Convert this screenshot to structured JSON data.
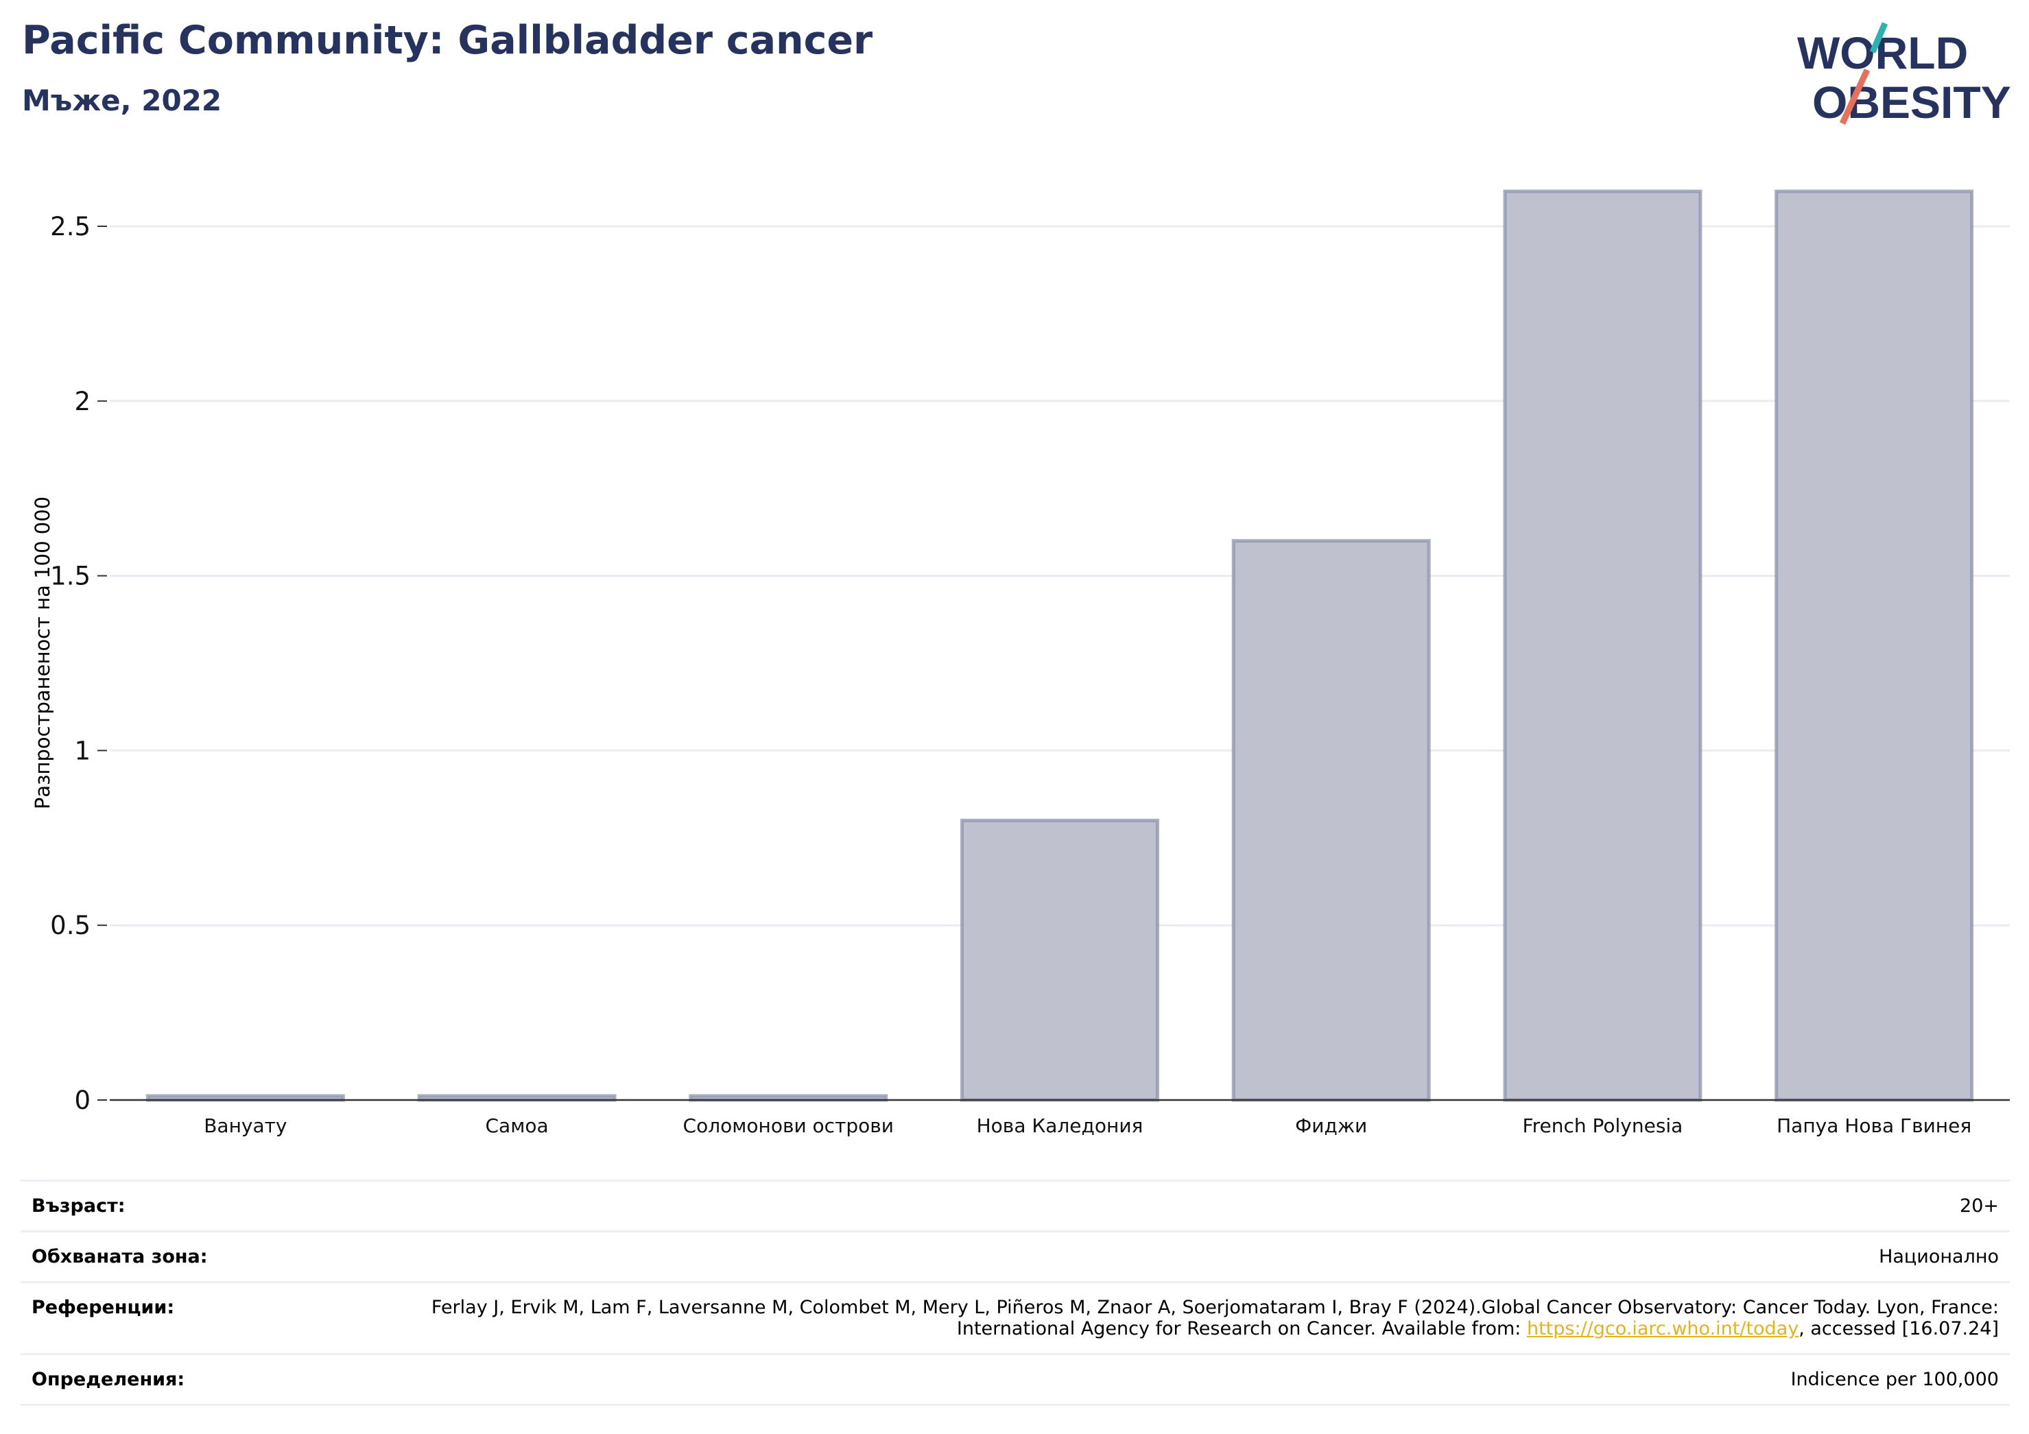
{
  "header": {
    "title": "Pacific Community: Gallbladder cancer",
    "subtitle": "Мъже, 2022"
  },
  "logo": {
    "line1": "WORLD",
    "line2": "OBESITY"
  },
  "chart_data": {
    "type": "bar",
    "categories": [
      "Вануату",
      "Самоа",
      "Соломонови острови",
      "Нова Каледония",
      "Фиджи",
      "French Polynesia",
      "Папуа Нова Гвинея"
    ],
    "values": [
      0,
      0,
      0,
      0.8,
      1.6,
      2.6,
      2.6
    ],
    "ylabel": "Разпространеност  на 100 000",
    "ylim": [
      0,
      2.6
    ],
    "yticks": [
      0,
      0.5,
      1,
      1.5,
      2,
      2.5
    ],
    "ytick_labels": [
      "0",
      "0.5",
      "1",
      "1.5",
      "2",
      "2.5"
    ],
    "grid": true,
    "colors": {
      "bar_fill": "#bfc2ce",
      "bar_stroke": "#8c93ab",
      "grid": "#ebebf2",
      "axis": "#333333"
    }
  },
  "meta": {
    "age_label": "Възраст:",
    "age_value": "20+",
    "area_label": "Обхваната зона:",
    "area_value": "Национално",
    "refs_label": "Референции:",
    "refs_text_1": "Ferlay J, Ervik M, Lam F, Laversanne M, Colombet M, Mery L, Piñeros M, Znaor A, Soerjomataram I, Bray F (2024).Global Cancer Observatory: Cancer Today. Lyon, France: International Agency for Research on Cancer. Available from: ",
    "refs_link": "https://gco.iarc.who.int/today",
    "refs_text_2": ", accessed [16.07.24]",
    "defs_label": "Определения:",
    "defs_value": "Indicence per 100,000"
  }
}
